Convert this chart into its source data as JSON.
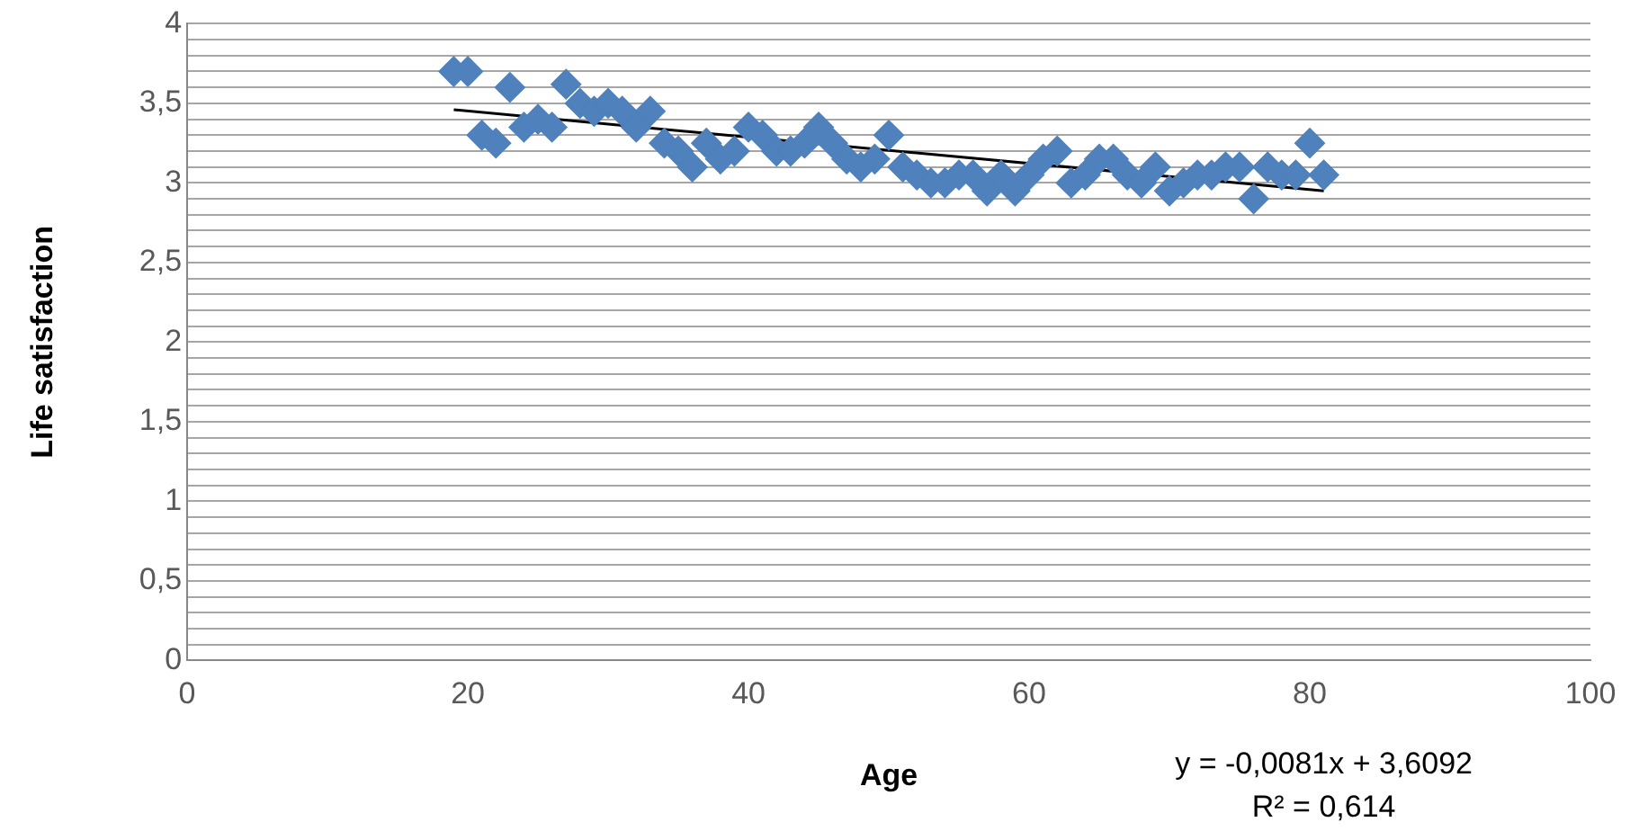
{
  "chart_data": {
    "type": "scatter",
    "xlabel": "Age",
    "ylabel": "Life satisfaction",
    "annotations": [
      "y = -0,0081x + 3,6092",
      "R² = 0,614"
    ],
    "x": [
      19,
      20,
      21,
      22,
      23,
      24,
      25,
      26,
      27,
      28,
      29,
      30,
      31,
      32,
      33,
      34,
      35,
      36,
      37,
      38,
      39,
      40,
      41,
      42,
      43,
      44,
      45,
      46,
      47,
      48,
      49,
      50,
      51,
      52,
      53,
      54,
      55,
      56,
      57,
      58,
      59,
      60,
      61,
      62,
      63,
      64,
      65,
      66,
      67,
      68,
      69,
      70,
      71,
      72,
      73,
      74,
      75,
      76,
      77,
      78,
      79,
      80,
      81
    ],
    "series": [
      {
        "color": "#4f81bd",
        "marker": "diamond",
        "values": [
          3.7,
          3.7,
          3.3,
          3.25,
          3.6,
          3.35,
          3.4,
          3.35,
          3.62,
          3.5,
          3.45,
          3.5,
          3.45,
          3.35,
          3.45,
          3.25,
          3.2,
          3.1,
          3.25,
          3.15,
          3.2,
          3.35,
          3.3,
          3.2,
          3.2,
          3.25,
          3.35,
          3.25,
          3.15,
          3.1,
          3.15,
          3.3,
          3.1,
          3.05,
          3.0,
          3.0,
          3.05,
          3.05,
          2.95,
          3.05,
          2.95,
          3.05,
          3.15,
          3.2,
          3.0,
          3.05,
          3.15,
          3.15,
          3.05,
          3.0,
          3.1,
          2.95,
          3.0,
          3.05,
          3.05,
          3.1,
          3.1,
          2.9,
          3.1,
          3.05,
          3.05,
          3.25,
          3.05
        ]
      },
      {
        "type": "line",
        "color": "#000000",
        "marker": "none",
        "x": [
          19,
          81
        ],
        "values": [
          3.46,
          2.95
        ]
      }
    ],
    "xlim": [
      0,
      100
    ],
    "xticks": [
      0,
      20,
      40,
      60,
      80,
      100
    ],
    "ylim": [
      0,
      4
    ],
    "yticks": [
      0,
      {
        "value": 0.1,
        "label": null
      },
      {
        "value": 0.2,
        "label": null
      },
      {
        "value": 0.3,
        "label": null
      },
      {
        "value": 0.4,
        "label": null
      },
      {
        "value": 0.5,
        "label": "0,5"
      },
      {
        "value": 0.6,
        "label": null
      },
      {
        "value": 0.7,
        "label": null
      },
      {
        "value": 0.8,
        "label": null
      },
      {
        "value": 0.9,
        "label": null
      },
      1,
      {
        "value": 1.1,
        "label": null
      },
      {
        "value": 1.2,
        "label": null
      },
      {
        "value": 1.3,
        "label": null
      },
      {
        "value": 1.4,
        "label": null
      },
      {
        "value": 1.5,
        "label": "1,5"
      },
      {
        "value": 1.6,
        "label": null
      },
      {
        "value": 1.7,
        "label": null
      },
      {
        "value": 1.8,
        "label": null
      },
      {
        "value": 1.9,
        "label": null
      },
      2,
      {
        "value": 2.1,
        "label": null
      },
      {
        "value": 2.2,
        "label": null
      },
      {
        "value": 2.3,
        "label": null
      },
      {
        "value": 2.4,
        "label": null
      },
      {
        "value": 2.5,
        "label": "2,5"
      },
      {
        "value": 2.6,
        "label": null
      },
      {
        "value": 2.7,
        "label": null
      },
      {
        "value": 2.8,
        "label": null
      },
      {
        "value": 2.9,
        "label": null
      },
      3,
      {
        "value": 3.1,
        "label": null
      },
      {
        "value": 3.2,
        "label": null
      },
      {
        "value": 3.3,
        "label": null
      },
      {
        "value": 3.4,
        "label": null
      },
      {
        "value": 3.5,
        "label": "3,5"
      },
      {
        "value": 3.6,
        "label": null
      },
      {
        "value": 3.7,
        "label": null
      },
      {
        "value": 3.8,
        "label": null
      },
      {
        "value": 3.9,
        "label": null
      },
      4
    ],
    "grid": "y",
    "legend": false
  }
}
